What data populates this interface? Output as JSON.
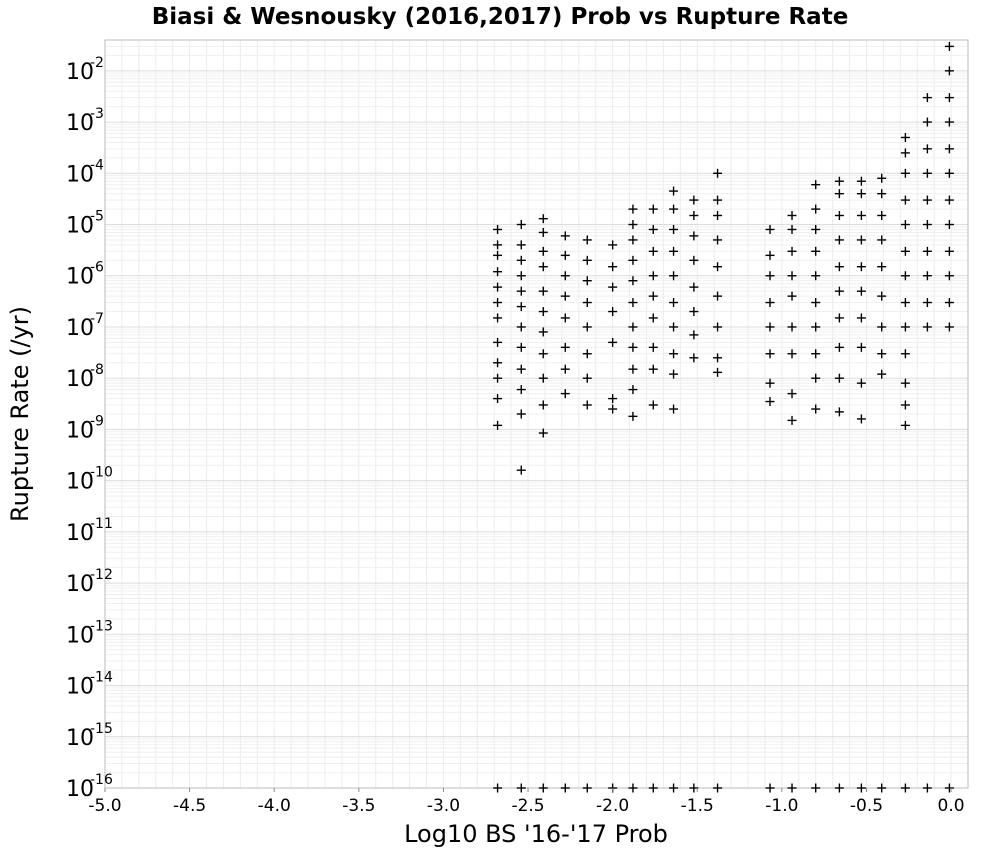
{
  "chart_data": {
    "type": "scatter",
    "title": "Biasi & Wesnousky (2016,2017) Prob vs Rupture Rate",
    "xlabel": "Log10 BS '16-'17 Prob",
    "ylabel": "Rupture Rate (/yr)",
    "xlim": [
      -5.0,
      0.1
    ],
    "ylim": [
      1e-16,
      0.04
    ],
    "yscale": "log",
    "grid": true,
    "marker": "+",
    "marker_color": "#000000",
    "x_ticks": [
      "-5.0",
      "-4.5",
      "-4.0",
      "-3.5",
      "-3.0",
      "-2.5",
      "-2.0",
      "-1.5",
      "-1.0",
      "-0.5",
      "0.0"
    ],
    "y_ticks": [
      {
        "base": "10",
        "exp": "-16"
      },
      {
        "base": "10",
        "exp": "-15"
      },
      {
        "base": "10",
        "exp": "-14"
      },
      {
        "base": "10",
        "exp": "-13"
      },
      {
        "base": "10",
        "exp": "-12"
      },
      {
        "base": "10",
        "exp": "-11"
      },
      {
        "base": "10",
        "exp": "-10"
      },
      {
        "base": "10",
        "exp": "-9"
      },
      {
        "base": "10",
        "exp": "-8"
      },
      {
        "base": "10",
        "exp": "-7"
      },
      {
        "base": "10",
        "exp": "-6"
      },
      {
        "base": "10",
        "exp": "-5"
      },
      {
        "base": "10",
        "exp": "-4"
      },
      {
        "base": "10",
        "exp": "-3"
      },
      {
        "base": "10",
        "exp": "-2"
      }
    ],
    "series": [
      {
        "points": [
          {
            "x": -2.68,
            "y": 1.2e-09
          },
          {
            "x": -2.68,
            "y": 4e-09
          },
          {
            "x": -2.68,
            "y": 1e-08
          },
          {
            "x": -2.68,
            "y": 2e-08
          },
          {
            "x": -2.68,
            "y": 5e-08
          },
          {
            "x": -2.68,
            "y": 1.5e-07
          },
          {
            "x": -2.68,
            "y": 3e-07
          },
          {
            "x": -2.68,
            "y": 6e-07
          },
          {
            "x": -2.68,
            "y": 1.2e-06
          },
          {
            "x": -2.68,
            "y": 2.5e-06
          },
          {
            "x": -2.68,
            "y": 4e-06
          },
          {
            "x": -2.68,
            "y": 8e-06
          },
          {
            "x": -2.68,
            "y": 1e-16
          },
          {
            "x": -2.54,
            "y": 1.6e-10
          },
          {
            "x": -2.54,
            "y": 2e-09
          },
          {
            "x": -2.54,
            "y": 6e-09
          },
          {
            "x": -2.54,
            "y": 1.5e-08
          },
          {
            "x": -2.54,
            "y": 4e-08
          },
          {
            "x": -2.54,
            "y": 1e-07
          },
          {
            "x": -2.54,
            "y": 2.5e-07
          },
          {
            "x": -2.54,
            "y": 5e-07
          },
          {
            "x": -2.54,
            "y": 1e-06
          },
          {
            "x": -2.54,
            "y": 2e-06
          },
          {
            "x": -2.54,
            "y": 4e-06
          },
          {
            "x": -2.54,
            "y": 1e-05
          },
          {
            "x": -2.54,
            "y": 1e-16
          },
          {
            "x": -2.41,
            "y": 8.5e-10
          },
          {
            "x": -2.41,
            "y": 3e-09
          },
          {
            "x": -2.41,
            "y": 1e-08
          },
          {
            "x": -2.41,
            "y": 3e-08
          },
          {
            "x": -2.41,
            "y": 8e-08
          },
          {
            "x": -2.41,
            "y": 2e-07
          },
          {
            "x": -2.41,
            "y": 5e-07
          },
          {
            "x": -2.41,
            "y": 1.5e-06
          },
          {
            "x": -2.41,
            "y": 3e-06
          },
          {
            "x": -2.41,
            "y": 7e-06
          },
          {
            "x": -2.41,
            "y": 1.3e-05
          },
          {
            "x": -2.41,
            "y": 1e-16
          },
          {
            "x": -2.28,
            "y": 5e-09
          },
          {
            "x": -2.28,
            "y": 1.5e-08
          },
          {
            "x": -2.28,
            "y": 4e-08
          },
          {
            "x": -2.28,
            "y": 1.5e-07
          },
          {
            "x": -2.28,
            "y": 4e-07
          },
          {
            "x": -2.28,
            "y": 1e-06
          },
          {
            "x": -2.28,
            "y": 2.5e-06
          },
          {
            "x": -2.28,
            "y": 6e-06
          },
          {
            "x": -2.28,
            "y": 1e-16
          },
          {
            "x": -2.15,
            "y": 3e-09
          },
          {
            "x": -2.15,
            "y": 1e-08
          },
          {
            "x": -2.15,
            "y": 3e-08
          },
          {
            "x": -2.15,
            "y": 1e-07
          },
          {
            "x": -2.15,
            "y": 3e-07
          },
          {
            "x": -2.15,
            "y": 8e-07
          },
          {
            "x": -2.15,
            "y": 2e-06
          },
          {
            "x": -2.15,
            "y": 5e-06
          },
          {
            "x": -2.15,
            "y": 1e-16
          },
          {
            "x": -2.0,
            "y": 2.5e-09
          },
          {
            "x": -2.0,
            "y": 4e-09
          },
          {
            "x": -2.0,
            "y": 5e-08
          },
          {
            "x": -2.0,
            "y": 2e-07
          },
          {
            "x": -2.0,
            "y": 6e-07
          },
          {
            "x": -2.0,
            "y": 1.5e-06
          },
          {
            "x": -2.0,
            "y": 4e-06
          },
          {
            "x": -2.0,
            "y": 1e-16
          },
          {
            "x": -1.88,
            "y": 1.8e-09
          },
          {
            "x": -1.88,
            "y": 6e-09
          },
          {
            "x": -1.88,
            "y": 1.5e-08
          },
          {
            "x": -1.88,
            "y": 4e-08
          },
          {
            "x": -1.88,
            "y": 1e-07
          },
          {
            "x": -1.88,
            "y": 3e-07
          },
          {
            "x": -1.88,
            "y": 8e-07
          },
          {
            "x": -1.88,
            "y": 2e-06
          },
          {
            "x": -1.88,
            "y": 5e-06
          },
          {
            "x": -1.88,
            "y": 1e-05
          },
          {
            "x": -1.88,
            "y": 2e-05
          },
          {
            "x": -1.88,
            "y": 1e-16
          },
          {
            "x": -1.76,
            "y": 3e-09
          },
          {
            "x": -1.76,
            "y": 1.5e-08
          },
          {
            "x": -1.76,
            "y": 4e-08
          },
          {
            "x": -1.76,
            "y": 1.5e-07
          },
          {
            "x": -1.76,
            "y": 4e-07
          },
          {
            "x": -1.76,
            "y": 1e-06
          },
          {
            "x": -1.76,
            "y": 3e-06
          },
          {
            "x": -1.76,
            "y": 8e-06
          },
          {
            "x": -1.76,
            "y": 2e-05
          },
          {
            "x": -1.76,
            "y": 1e-16
          },
          {
            "x": -1.64,
            "y": 2.5e-09
          },
          {
            "x": -1.64,
            "y": 1.2e-08
          },
          {
            "x": -1.64,
            "y": 3e-08
          },
          {
            "x": -1.64,
            "y": 1e-07
          },
          {
            "x": -1.64,
            "y": 3e-07
          },
          {
            "x": -1.64,
            "y": 1e-06
          },
          {
            "x": -1.64,
            "y": 3e-06
          },
          {
            "x": -1.64,
            "y": 8e-06
          },
          {
            "x": -1.64,
            "y": 2e-05
          },
          {
            "x": -1.64,
            "y": 4.5e-05
          },
          {
            "x": -1.64,
            "y": 1e-16
          },
          {
            "x": -1.52,
            "y": 2.5e-08
          },
          {
            "x": -1.52,
            "y": 7e-08
          },
          {
            "x": -1.52,
            "y": 2e-07
          },
          {
            "x": -1.52,
            "y": 6e-07
          },
          {
            "x": -1.52,
            "y": 2e-06
          },
          {
            "x": -1.52,
            "y": 6e-06
          },
          {
            "x": -1.52,
            "y": 1.5e-05
          },
          {
            "x": -1.52,
            "y": 3e-05
          },
          {
            "x": -1.52,
            "y": 1e-16
          },
          {
            "x": -1.38,
            "y": 1.3e-08
          },
          {
            "x": -1.38,
            "y": 2.5e-08
          },
          {
            "x": -1.38,
            "y": 1e-07
          },
          {
            "x": -1.38,
            "y": 4e-07
          },
          {
            "x": -1.38,
            "y": 1.5e-06
          },
          {
            "x": -1.38,
            "y": 5e-06
          },
          {
            "x": -1.38,
            "y": 1.5e-05
          },
          {
            "x": -1.38,
            "y": 3e-05
          },
          {
            "x": -1.38,
            "y": 0.0001
          },
          {
            "x": -1.38,
            "y": 1e-16
          },
          {
            "x": -1.07,
            "y": 3.5e-09
          },
          {
            "x": -1.07,
            "y": 8e-09
          },
          {
            "x": -1.07,
            "y": 3e-08
          },
          {
            "x": -1.07,
            "y": 1e-07
          },
          {
            "x": -1.07,
            "y": 3e-07
          },
          {
            "x": -1.07,
            "y": 1e-06
          },
          {
            "x": -1.07,
            "y": 2.5e-06
          },
          {
            "x": -1.07,
            "y": 8e-06
          },
          {
            "x": -1.07,
            "y": 1e-16
          },
          {
            "x": -0.94,
            "y": 1.5e-09
          },
          {
            "x": -0.94,
            "y": 5e-09
          },
          {
            "x": -0.94,
            "y": 3e-08
          },
          {
            "x": -0.94,
            "y": 1e-07
          },
          {
            "x": -0.94,
            "y": 4e-07
          },
          {
            "x": -0.94,
            "y": 1e-06
          },
          {
            "x": -0.94,
            "y": 3e-06
          },
          {
            "x": -0.94,
            "y": 8e-06
          },
          {
            "x": -0.94,
            "y": 1.5e-05
          },
          {
            "x": -0.94,
            "y": 1e-16
          },
          {
            "x": -0.8,
            "y": 2.5e-09
          },
          {
            "x": -0.8,
            "y": 1e-08
          },
          {
            "x": -0.8,
            "y": 3e-08
          },
          {
            "x": -0.8,
            "y": 1e-07
          },
          {
            "x": -0.8,
            "y": 3e-07
          },
          {
            "x": -0.8,
            "y": 1e-06
          },
          {
            "x": -0.8,
            "y": 3e-06
          },
          {
            "x": -0.8,
            "y": 8e-06
          },
          {
            "x": -0.8,
            "y": 2e-05
          },
          {
            "x": -0.8,
            "y": 6e-05
          },
          {
            "x": -0.8,
            "y": 1e-16
          },
          {
            "x": -0.66,
            "y": 2.2e-09
          },
          {
            "x": -0.66,
            "y": 1e-08
          },
          {
            "x": -0.66,
            "y": 4e-08
          },
          {
            "x": -0.66,
            "y": 1.5e-07
          },
          {
            "x": -0.66,
            "y": 5e-07
          },
          {
            "x": -0.66,
            "y": 1.5e-06
          },
          {
            "x": -0.66,
            "y": 5e-06
          },
          {
            "x": -0.66,
            "y": 1.5e-05
          },
          {
            "x": -0.66,
            "y": 4e-05
          },
          {
            "x": -0.66,
            "y": 7e-05
          },
          {
            "x": -0.66,
            "y": 1e-16
          },
          {
            "x": -0.53,
            "y": 1.6e-09
          },
          {
            "x": -0.53,
            "y": 8e-09
          },
          {
            "x": -0.53,
            "y": 4e-08
          },
          {
            "x": -0.53,
            "y": 1.5e-07
          },
          {
            "x": -0.53,
            "y": 5e-07
          },
          {
            "x": -0.53,
            "y": 1.5e-06
          },
          {
            "x": -0.53,
            "y": 5e-06
          },
          {
            "x": -0.53,
            "y": 1.5e-05
          },
          {
            "x": -0.53,
            "y": 4e-05
          },
          {
            "x": -0.53,
            "y": 7e-05
          },
          {
            "x": -0.53,
            "y": 1e-16
          },
          {
            "x": -0.41,
            "y": 1.2e-08
          },
          {
            "x": -0.41,
            "y": 3e-08
          },
          {
            "x": -0.41,
            "y": 1e-07
          },
          {
            "x": -0.41,
            "y": 4e-07
          },
          {
            "x": -0.41,
            "y": 1.5e-06
          },
          {
            "x": -0.41,
            "y": 5e-06
          },
          {
            "x": -0.41,
            "y": 1.5e-05
          },
          {
            "x": -0.41,
            "y": 4e-05
          },
          {
            "x": -0.41,
            "y": 8e-05
          },
          {
            "x": -0.41,
            "y": 1e-16
          },
          {
            "x": -0.27,
            "y": 1.2e-09
          },
          {
            "x": -0.27,
            "y": 3e-09
          },
          {
            "x": -0.27,
            "y": 8e-09
          },
          {
            "x": -0.27,
            "y": 3e-08
          },
          {
            "x": -0.27,
            "y": 1e-07
          },
          {
            "x": -0.27,
            "y": 3e-07
          },
          {
            "x": -0.27,
            "y": 1e-06
          },
          {
            "x": -0.27,
            "y": 3e-06
          },
          {
            "x": -0.27,
            "y": 1e-05
          },
          {
            "x": -0.27,
            "y": 3e-05
          },
          {
            "x": -0.27,
            "y": 0.0001
          },
          {
            "x": -0.27,
            "y": 0.00025
          },
          {
            "x": -0.27,
            "y": 0.0005
          },
          {
            "x": -0.27,
            "y": 1e-16
          },
          {
            "x": -0.14,
            "y": 1e-07
          },
          {
            "x": -0.14,
            "y": 3e-07
          },
          {
            "x": -0.14,
            "y": 1e-06
          },
          {
            "x": -0.14,
            "y": 3e-06
          },
          {
            "x": -0.14,
            "y": 1e-05
          },
          {
            "x": -0.14,
            "y": 3e-05
          },
          {
            "x": -0.14,
            "y": 0.0001
          },
          {
            "x": -0.14,
            "y": 0.0003
          },
          {
            "x": -0.14,
            "y": 0.001
          },
          {
            "x": -0.14,
            "y": 0.003
          },
          {
            "x": -0.14,
            "y": 1e-16
          },
          {
            "x": -0.01,
            "y": 1e-07
          },
          {
            "x": -0.01,
            "y": 3e-07
          },
          {
            "x": -0.01,
            "y": 1e-06
          },
          {
            "x": -0.01,
            "y": 3e-06
          },
          {
            "x": -0.01,
            "y": 1e-05
          },
          {
            "x": -0.01,
            "y": 3e-05
          },
          {
            "x": -0.01,
            "y": 0.0001
          },
          {
            "x": -0.01,
            "y": 0.0003
          },
          {
            "x": -0.01,
            "y": 0.001
          },
          {
            "x": -0.01,
            "y": 0.003
          },
          {
            "x": -0.01,
            "y": 0.01
          },
          {
            "x": -0.01,
            "y": 0.03
          },
          {
            "x": -0.01,
            "y": 1e-16
          }
        ]
      }
    ]
  }
}
